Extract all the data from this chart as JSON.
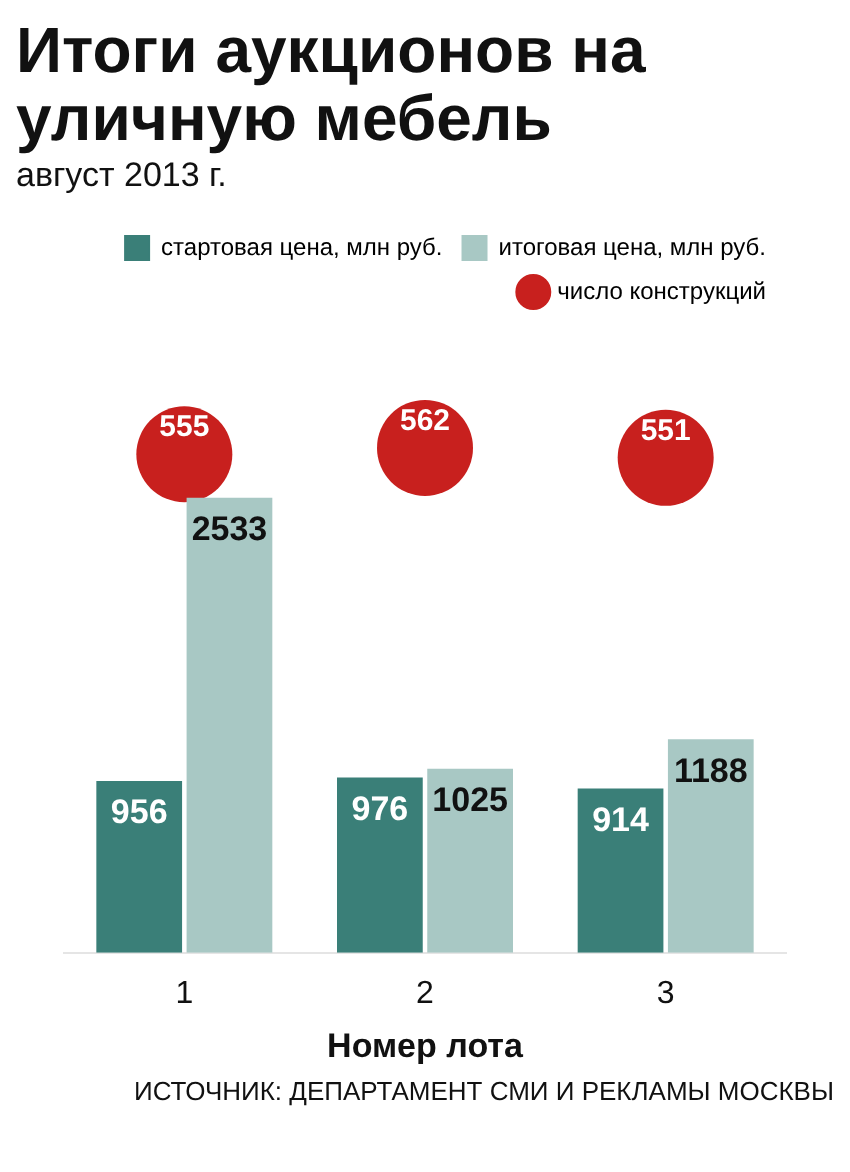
{
  "chart_data": {
    "type": "bar",
    "title": "Итоги аукционов на уличную мебель",
    "subtitle": "август 2013 г.",
    "xlabel": "Номер лота",
    "categories": [
      "1",
      "2",
      "3"
    ],
    "series": [
      {
        "name": "стартовая цена, млн руб.",
        "color": "#3a7f78",
        "values": [
          956,
          976,
          914
        ]
      },
      {
        "name": "итоговая цена, млн руб.",
        "color": "#a8c8c4",
        "values": [
          2533,
          1025,
          1188
        ]
      },
      {
        "name": "число конструкций",
        "type": "scatter",
        "axis": "y2",
        "color": "#c8201e",
        "values": [
          555,
          562,
          551
        ]
      }
    ],
    "data_labels": true,
    "legend": "top right",
    "marker": "circle",
    "annotations": [
      "ИСТОЧНИК: ДЕПАРТАМЕНТ СМИ И РЕКЛАМЫ МОСКВЫ"
    ]
  }
}
